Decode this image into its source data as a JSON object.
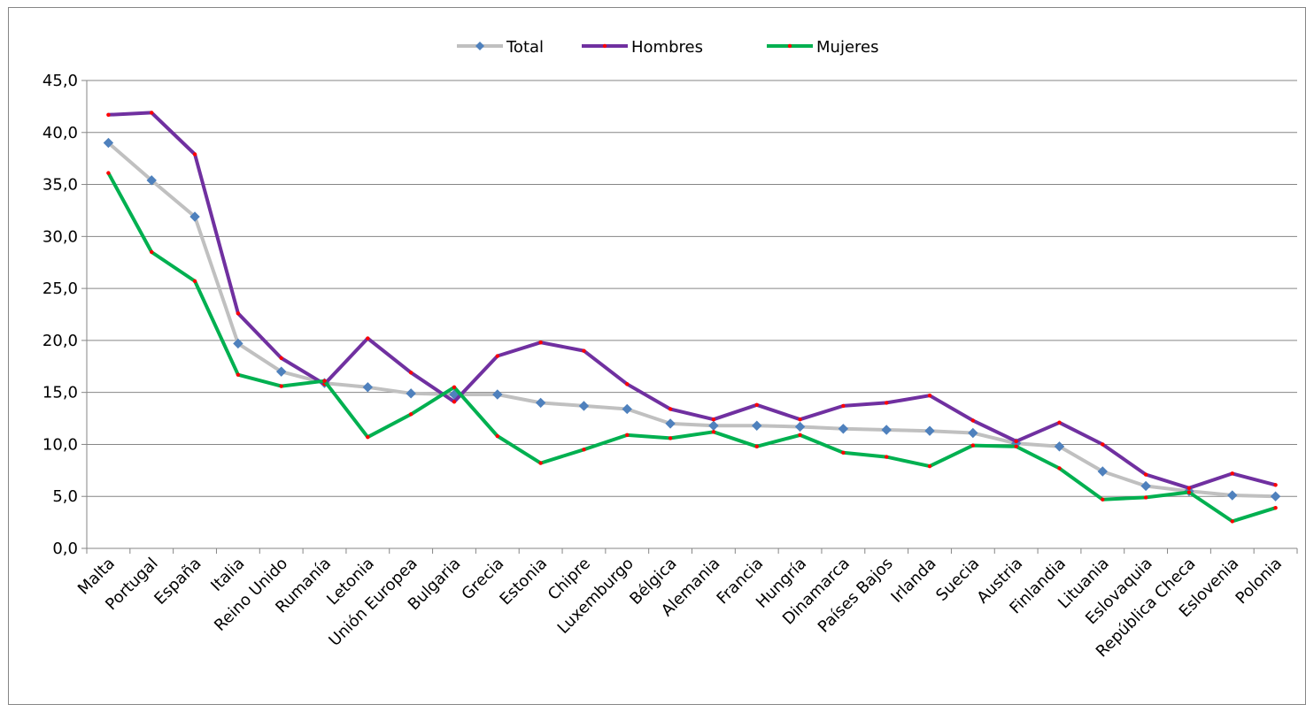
{
  "chart_data": {
    "type": "line",
    "title": "",
    "xlabel": "",
    "ylabel": "",
    "ylim": [
      0,
      45
    ],
    "yticks": [
      "0,0",
      "5,0",
      "10,0",
      "15,0",
      "20,0",
      "25,0",
      "30,0",
      "35,0",
      "40,0",
      "45,0"
    ],
    "grid": "horizontal",
    "legend_position": "top-center",
    "categories": [
      "Malta",
      "Portugal",
      "España",
      "Italia",
      "Reino Unido",
      "Rumanía",
      "Letonia",
      "Unión Europea",
      "Bulgaria",
      "Grecia",
      "Estonia",
      "Chipre",
      "Luxemburgo",
      "Bélgica",
      "Alemania",
      "Francia",
      "Hungría",
      "Dinamarca",
      "Países Bajos",
      "Irlanda",
      "Suecia",
      "Austria",
      "Finlandia",
      "Lituania",
      "Eslovaquia",
      "República Checa",
      "Eslovenia",
      "Polonia"
    ],
    "series": [
      {
        "name": "Total",
        "color": "#c0c0c0",
        "marker": "diamond",
        "marker_color": "#4f81bd",
        "values": [
          39.0,
          35.4,
          31.9,
          19.7,
          17.0,
          15.9,
          15.5,
          14.9,
          14.8,
          14.8,
          14.0,
          13.7,
          13.4,
          12.0,
          11.8,
          11.8,
          11.7,
          11.5,
          11.4,
          11.3,
          11.1,
          10.1,
          9.8,
          7.4,
          6.0,
          5.5,
          5.1,
          5.0
        ]
      },
      {
        "name": "Hombres",
        "color": "#7030a0",
        "marker": "dot",
        "marker_color": "#ff0000",
        "values": [
          41.7,
          41.9,
          37.9,
          22.6,
          18.3,
          15.8,
          20.2,
          16.9,
          14.1,
          18.5,
          19.8,
          19.0,
          15.8,
          13.4,
          12.4,
          13.8,
          12.4,
          13.7,
          14.0,
          14.7,
          12.3,
          10.3,
          12.1,
          10.0,
          7.1,
          5.8,
          7.2,
          6.1
        ]
      },
      {
        "name": "Mujeres",
        "color": "#00b050",
        "marker": "dot",
        "marker_color": "#ff0000",
        "values": [
          36.1,
          28.5,
          25.7,
          16.7,
          15.6,
          16.1,
          10.7,
          12.9,
          15.5,
          10.8,
          8.2,
          9.5,
          10.9,
          10.6,
          11.2,
          9.8,
          10.9,
          9.2,
          8.8,
          7.9,
          9.9,
          9.8,
          7.7,
          4.7,
          4.9,
          5.4,
          2.6,
          3.9
        ]
      }
    ]
  }
}
